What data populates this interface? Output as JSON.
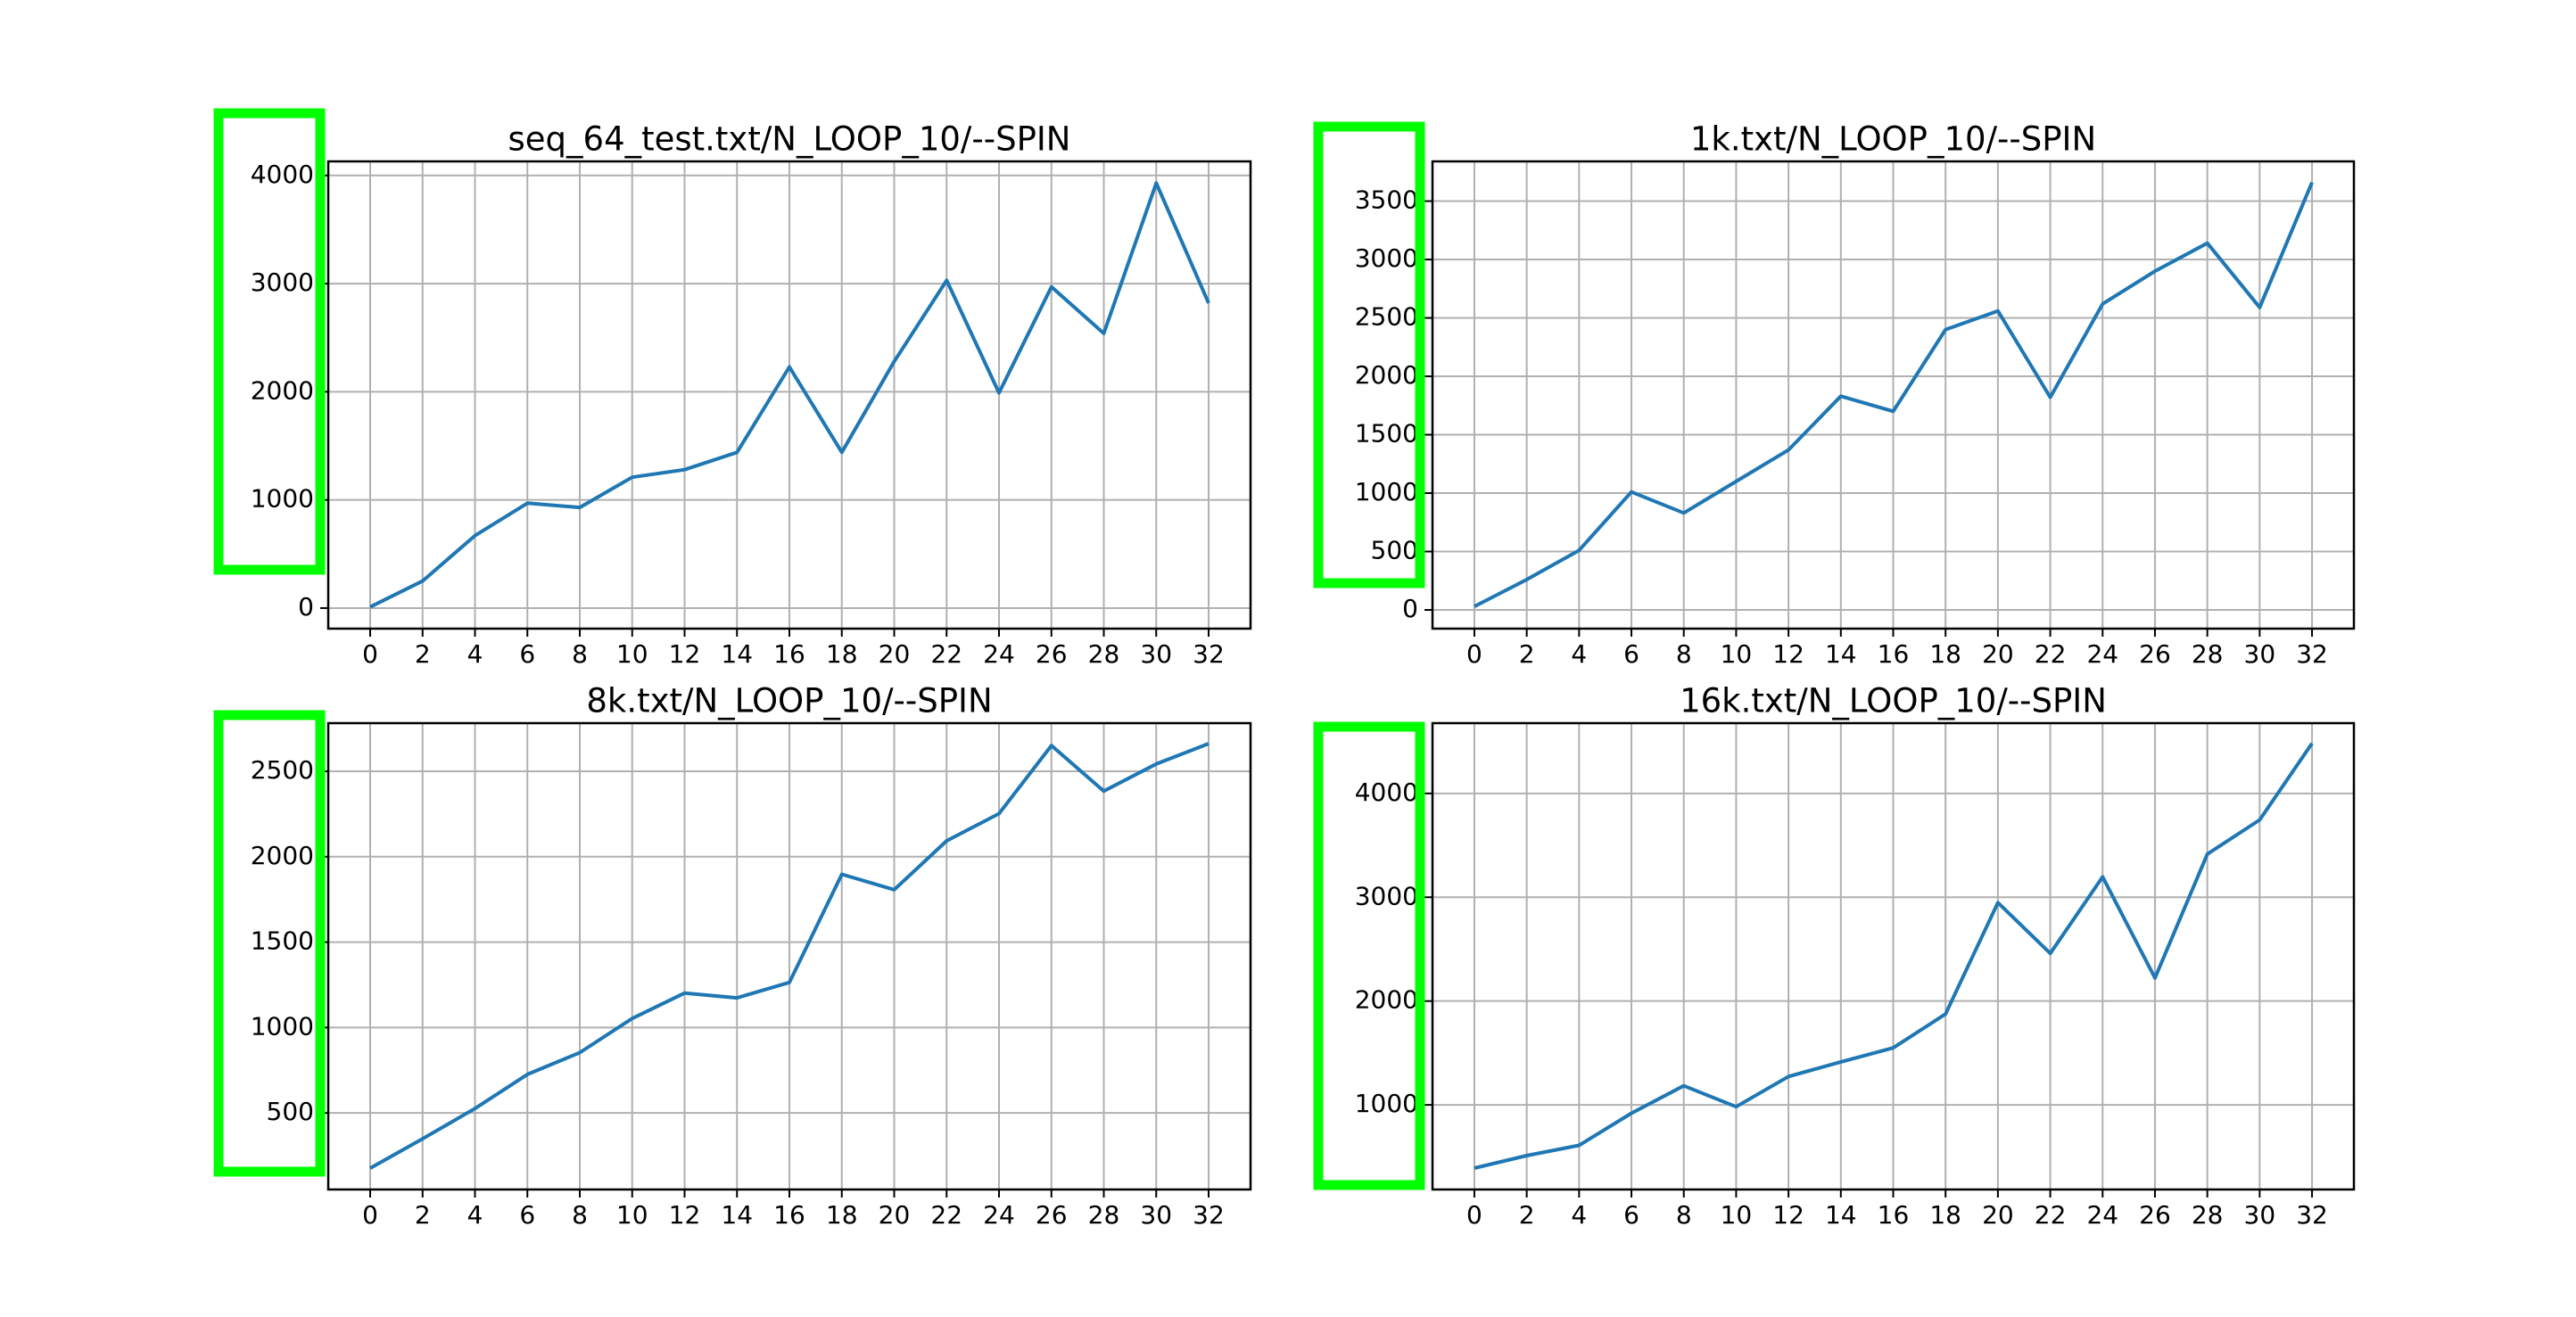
{
  "colors": {
    "line": "#1f77b4",
    "highlight": "#00ff00"
  },
  "chart_data": [
    {
      "type": "line",
      "title": "seq_64_test.txt/N_LOOP_10/--SPIN",
      "x": [
        0,
        2,
        4,
        6,
        8,
        10,
        12,
        14,
        16,
        18,
        20,
        22,
        24,
        26,
        28,
        30,
        32
      ],
      "values": [
        10,
        250,
        670,
        970,
        930,
        1210,
        1280,
        1440,
        2230,
        1440,
        2280,
        3030,
        1990,
        2970,
        2540,
        3930,
        2820
      ],
      "xticks": [
        0,
        2,
        4,
        6,
        8,
        10,
        12,
        14,
        16,
        18,
        20,
        22,
        24,
        26,
        28,
        30,
        32
      ],
      "yticks": [
        0,
        1000,
        2000,
        3000,
        4000
      ],
      "xlim": [
        -1.6,
        33.6
      ],
      "ylim": [
        -190,
        4130
      ],
      "grid": true,
      "y_axis_highlighted": true
    },
    {
      "type": "line",
      "title": "1k.txt/N_LOOP_10/--SPIN",
      "x": [
        0,
        2,
        4,
        6,
        8,
        10,
        12,
        14,
        16,
        18,
        20,
        22,
        24,
        26,
        28,
        30,
        32
      ],
      "values": [
        30,
        260,
        510,
        1010,
        830,
        1100,
        1370,
        1830,
        1700,
        2400,
        2560,
        1820,
        2620,
        2900,
        3140,
        2590,
        3660
      ],
      "xticks": [
        0,
        2,
        4,
        6,
        8,
        10,
        12,
        14,
        16,
        18,
        20,
        22,
        24,
        26,
        28,
        30,
        32
      ],
      "yticks": [
        0,
        500,
        1000,
        1500,
        2000,
        2500,
        3000,
        3500
      ],
      "xlim": [
        -1.6,
        33.6
      ],
      "ylim": [
        -160,
        3840
      ],
      "grid": true,
      "y_axis_highlighted": true
    },
    {
      "type": "line",
      "title": "8k.txt/N_LOOP_10/--SPIN",
      "x": [
        0,
        2,
        4,
        6,
        8,
        10,
        12,
        14,
        16,
        18,
        20,
        22,
        24,
        26,
        28,
        30,
        32
      ],
      "values": [
        177,
        349,
        526,
        726,
        853,
        1053,
        1202,
        1174,
        1264,
        1897,
        1807,
        2093,
        2252,
        2651,
        2384,
        2543,
        2662
      ],
      "xticks": [
        0,
        2,
        4,
        6,
        8,
        10,
        12,
        14,
        16,
        18,
        20,
        22,
        24,
        26,
        28,
        30,
        32
      ],
      "yticks": [
        500,
        1000,
        1500,
        2000,
        2500
      ],
      "xlim": [
        -1.6,
        33.6
      ],
      "ylim": [
        52,
        2782
      ],
      "grid": true,
      "y_axis_highlighted": true
    },
    {
      "type": "line",
      "title": "16k.txt/N_LOOP_10/--SPIN",
      "x": [
        0,
        2,
        4,
        6,
        8,
        10,
        12,
        14,
        16,
        18,
        20,
        22,
        24,
        26,
        28,
        30,
        32
      ],
      "values": [
        391,
        511,
        610,
        919,
        1184,
        982,
        1273,
        1414,
        1549,
        1875,
        2948,
        2459,
        3196,
        2222,
        3416,
        3745,
        4482
      ],
      "xticks": [
        0,
        2,
        4,
        6,
        8,
        10,
        12,
        14,
        16,
        18,
        20,
        22,
        24,
        26,
        28,
        30,
        32
      ],
      "yticks": [
        1000,
        2000,
        3000,
        4000
      ],
      "xlim": [
        -1.6,
        33.6
      ],
      "ylim": [
        185,
        4677
      ],
      "grid": true,
      "y_axis_highlighted": true
    }
  ]
}
